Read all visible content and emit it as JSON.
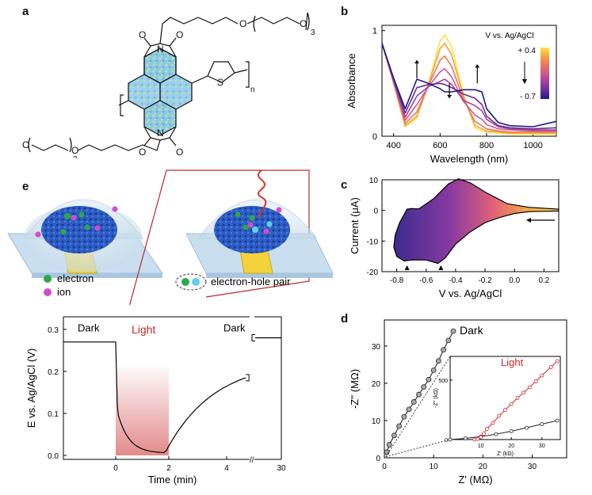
{
  "panel_labels": {
    "a": "a",
    "b": "b",
    "c": "c",
    "d": "d",
    "e": "e"
  },
  "structure": {
    "n_label": "n",
    "sub_3_top": "3",
    "sub_3_bottom": "3",
    "O": "O",
    "N": "N",
    "S": "S"
  },
  "legend_e": {
    "electron": "electron",
    "ion": "ion",
    "pair": "electron-hole pair"
  },
  "colors": {
    "electron": "#2aa84a",
    "ion": "#d64bc8",
    "hole": "#5fd0e8",
    "light_red": "#c0282a",
    "dark_curve": "#333333"
  },
  "chart_data": [
    {
      "id": "b",
      "type": "line",
      "xlabel": "Wavelength (nm)",
      "ylabel": "Absorbance",
      "xlim": [
        350,
        1100
      ],
      "ylim": [
        0,
        1.05
      ],
      "xticks": [
        "400",
        "600",
        "800",
        "1000"
      ],
      "yticks": [
        "0",
        "1"
      ],
      "legend_title": "V vs. Ag/AgCl",
      "legend_top": "+ 0.4",
      "legend_bottom": "- 0.7",
      "series_colors": [
        "#fde24a",
        "#f7a33a",
        "#e9765c",
        "#cf5b8a",
        "#a33fa0",
        "#6a2c9c",
        "#1c1b86"
      ],
      "x": [
        350,
        400,
        450,
        500,
        550,
        600,
        620,
        650,
        700,
        750,
        780,
        800,
        850,
        900,
        1000,
        1100
      ],
      "series": [
        {
          "values": [
            0.88,
            0.5,
            0.09,
            0.17,
            0.5,
            0.9,
            0.96,
            0.85,
            0.4,
            0.08,
            0.05,
            0.04,
            0.03,
            0.02,
            0.02,
            0.02
          ]
        },
        {
          "values": [
            0.88,
            0.5,
            0.1,
            0.19,
            0.49,
            0.83,
            0.88,
            0.77,
            0.38,
            0.1,
            0.07,
            0.05,
            0.04,
            0.03,
            0.03,
            0.03
          ]
        },
        {
          "values": [
            0.88,
            0.51,
            0.12,
            0.23,
            0.48,
            0.72,
            0.76,
            0.66,
            0.35,
            0.14,
            0.1,
            0.07,
            0.05,
            0.04,
            0.04,
            0.04
          ]
        },
        {
          "values": [
            0.88,
            0.52,
            0.15,
            0.3,
            0.47,
            0.61,
            0.64,
            0.56,
            0.33,
            0.2,
            0.16,
            0.11,
            0.07,
            0.06,
            0.05,
            0.05
          ]
        },
        {
          "values": [
            0.88,
            0.53,
            0.18,
            0.38,
            0.47,
            0.52,
            0.54,
            0.49,
            0.34,
            0.29,
            0.24,
            0.16,
            0.09,
            0.07,
            0.06,
            0.06
          ]
        },
        {
          "values": [
            0.88,
            0.54,
            0.22,
            0.46,
            0.49,
            0.5,
            0.49,
            0.46,
            0.4,
            0.36,
            0.3,
            0.19,
            0.1,
            0.08,
            0.07,
            0.08
          ]
        },
        {
          "values": [
            0.88,
            0.55,
            0.26,
            0.54,
            0.5,
            0.45,
            0.42,
            0.42,
            0.44,
            0.44,
            0.42,
            0.26,
            0.13,
            0.1,
            0.09,
            0.14
          ]
        }
      ]
    },
    {
      "id": "c",
      "type": "line",
      "xlabel": "V vs. Ag/AgCl",
      "ylabel": "Current (μA)",
      "xlim": [
        -0.9,
        0.3
      ],
      "ylim": [
        -20,
        10
      ],
      "xticks": [
        "-0.8",
        "-0.6",
        "-0.4",
        "-0.2",
        "0.0",
        "0.2"
      ],
      "yticks": [
        "-20",
        "-10",
        "0",
        "10"
      ],
      "cv_upper": [
        [
          0.3,
          0.4
        ],
        [
          0.1,
          1.0
        ],
        [
          -0.05,
          2.2
        ],
        [
          -0.2,
          6.0
        ],
        [
          -0.3,
          9.0
        ],
        [
          -0.38,
          10.3
        ],
        [
          -0.45,
          8.6
        ],
        [
          -0.55,
          3.8
        ],
        [
          -0.65,
          0.5
        ],
        [
          -0.7,
          0.6
        ],
        [
          -0.73,
          0.4
        ],
        [
          -0.78,
          -4.0
        ],
        [
          -0.81,
          -8.0
        ],
        [
          -0.82,
          -12.0
        ],
        [
          -0.8,
          -15.0
        ],
        [
          -0.75,
          -16.5
        ]
      ],
      "cv_lower": [
        [
          -0.75,
          -16.5
        ],
        [
          -0.7,
          -16.2
        ],
        [
          -0.6,
          -16.2
        ],
        [
          -0.52,
          -17.3
        ],
        [
          -0.47,
          -15.5
        ],
        [
          -0.4,
          -11.0
        ],
        [
          -0.3,
          -7.0
        ],
        [
          -0.2,
          -4.0
        ],
        [
          -0.1,
          -2.3
        ],
        [
          0.0,
          -1.0
        ],
        [
          0.1,
          -0.4
        ],
        [
          0.3,
          -0.2
        ]
      ],
      "markers_x": [
        -0.73,
        -0.5
      ]
    },
    {
      "id": "d",
      "type": "scatter",
      "xlabel": "Z' (MΩ)",
      "ylabel": "-Z'' (MΩ)",
      "xlim": [
        0,
        37
      ],
      "ylim": [
        0,
        37
      ],
      "xticks": [
        "0",
        "10",
        "20",
        "30"
      ],
      "yticks": [
        "0",
        "10",
        "20",
        "30"
      ],
      "series": [
        {
          "name": "Dark",
          "x": [
            0.5,
            1,
            2,
            3,
            4,
            5,
            6,
            7,
            8,
            9,
            10,
            11,
            12,
            13,
            14
          ],
          "y": [
            1.5,
            3.5,
            6,
            8.5,
            11,
            13,
            15,
            17,
            19,
            21,
            23.5,
            26,
            29,
            31.5,
            34
          ]
        }
      ]
    },
    {
      "id": "d_inset",
      "type": "scatter",
      "xlabel": "Z' (kΩ)",
      "ylabel": "-Z'' (kΩ)",
      "xlim": [
        0,
        36
      ],
      "ylim": [
        0,
        700
      ],
      "xticks": [
        "10",
        "20",
        "30"
      ],
      "yticks": [
        "0",
        "500"
      ],
      "series": [
        {
          "name": "Light",
          "x": [
            8,
            9,
            10,
            11,
            12,
            14,
            16,
            18,
            20,
            22,
            24,
            26,
            28,
            30,
            33,
            35
          ],
          "y": [
            0,
            5,
            20,
            50,
            90,
            140,
            200,
            250,
            300,
            350,
            395,
            440,
            490,
            540,
            610,
            660
          ]
        },
        {
          "name": "Dark-line",
          "x": [
            0,
            5,
            10,
            15,
            20,
            25,
            30,
            35
          ],
          "y": [
            0,
            10,
            25,
            45,
            70,
            100,
            130,
            160
          ]
        }
      ]
    },
    {
      "id": "e",
      "type": "line",
      "xlabel": "Time (min)",
      "ylabel": "E vs. Ag/AgCl (V)",
      "xticks": [
        "0",
        "2",
        "4",
        "30"
      ],
      "yticks": [
        "0.0",
        "0.1",
        "0.2",
        "0.3"
      ],
      "labels": {
        "dark_left": "Dark",
        "light": "Light",
        "dark_right": "Dark"
      },
      "dark_level": 0.27,
      "light_end": 0.005,
      "recovery_end": 0.185,
      "final_level": 0.28
    }
  ]
}
